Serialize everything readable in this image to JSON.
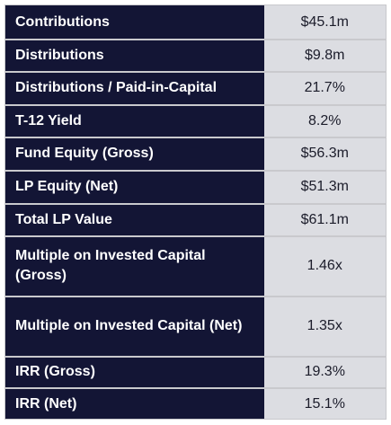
{
  "table": {
    "rows": [
      {
        "label": "Contributions",
        "value": "$45.1m"
      },
      {
        "label": "Distributions",
        "value": "$9.8m"
      },
      {
        "label": "Distributions / Paid-in-Capital",
        "value": "21.7%"
      },
      {
        "label": "T-12 Yield",
        "value": "8.2%"
      },
      {
        "label": "Fund Equity (Gross)",
        "value": "$56.3m"
      },
      {
        "label": "LP Equity (Net)",
        "value": "$51.3m"
      },
      {
        "label": "Total LP Value",
        "value": "$61.1m"
      },
      {
        "label": "Multiple on Invested Capital (Gross)",
        "value": "1.46x"
      },
      {
        "label": "Multiple on Invested Capital (Net)",
        "value": "1.35x"
      },
      {
        "label": "IRR (Gross)",
        "value": "19.3%"
      },
      {
        "label": "IRR (Net)",
        "value": "15.1%"
      }
    ]
  },
  "colors": {
    "label_background": "#131535",
    "value_background": "#dcdde2",
    "divider": "#c9c9cd"
  }
}
